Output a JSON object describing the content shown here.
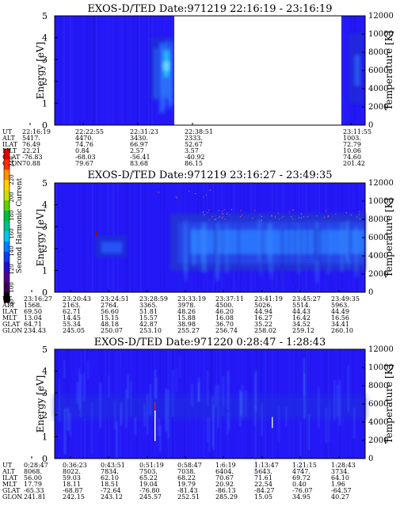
{
  "panels": [
    {
      "title": "EXOS-D/TED   Date:971219  22:16:19 - 23:16:19",
      "ylabel": "Energy [eV]",
      "y2label": "Temperature [K]",
      "yticks": [
        "0",
        "1",
        "2",
        "3",
        "4",
        "5"
      ],
      "y2ticks": [
        "0",
        "2000",
        "4000",
        "6000",
        "8000",
        "10000",
        "12000"
      ],
      "eph_labels": [
        "UT",
        "ALT",
        "ILAT",
        "MLT",
        "GLAT",
        "GLON"
      ],
      "eph_columns": [
        [
          "22:16:19",
          "5417.",
          "76.49",
          "22.21",
          "-76.83",
          "70.88"
        ],
        [
          "22:22:55",
          "4470.",
          "74.76",
          "0.84",
          "-68.03",
          "79.67"
        ],
        [
          "22:31:23",
          "3430.",
          "66.97",
          "2.57",
          "-56.41",
          "83.68"
        ],
        [
          "22:38:51",
          "2333.",
          "52.67",
          "3.57",
          "-40.92",
          "86.15"
        ],
        [
          "23:11:55",
          "1003.",
          "72.79",
          "10.06",
          "74.60",
          "201.42"
        ]
      ]
    },
    {
      "title": "EXOS-D/TED   Date:971219  23:16:27 - 23:49:35",
      "ylabel": "Energy [eV]",
      "y2label": "Temperature [K]",
      "yticks": [
        "0",
        "1",
        "2",
        "3",
        "4",
        "5"
      ],
      "y2ticks": [
        "0",
        "2000",
        "4000",
        "6000",
        "8000",
        "10000",
        "12000"
      ],
      "eph_labels": [
        "UT",
        "ALT",
        "ILAT",
        "MLT",
        "GLAT",
        "GLON"
      ],
      "eph_columns": [
        [
          "23:16:27",
          "1568.",
          "69.50",
          "13.04",
          "64.71",
          "234.43"
        ],
        [
          "23:20:43",
          "2163.",
          "62.71",
          "14.45",
          "55.34",
          "245.05"
        ],
        [
          "23:24:51",
          "2764.",
          "56.60",
          "15.15",
          "48.18",
          "250.07"
        ],
        [
          "23:28:59",
          "3365.",
          "51.81",
          "15.57",
          "42.87",
          "253.10"
        ],
        [
          "23:33:19",
          "3978.",
          "48.26",
          "15.88",
          "38.98",
          "255.27"
        ],
        [
          "23:37:11",
          "4500.",
          "46.20",
          "16.08",
          "36.70",
          "256.74"
        ],
        [
          "23:41:19",
          "5026.",
          "44.94",
          "16.27",
          "35.22",
          "258.02"
        ],
        [
          "23:45:27",
          "5514.",
          "44.43",
          "16.42",
          "34.52",
          "259.12"
        ],
        [
          "23:49:35",
          "5963.",
          "44.49",
          "16.56",
          "34.41",
          "260.10"
        ]
      ]
    },
    {
      "title": "EXOS-D/TED   Date:971220  0:28:47 - 1:28:43",
      "ylabel": "Energy [eV]",
      "y2label": "Temperature [K]",
      "yticks": [
        "0",
        "1",
        "2",
        "3",
        "4",
        "5"
      ],
      "y2ticks": [
        "0",
        "2000",
        "4000",
        "6000",
        "8000",
        "10000",
        "12000"
      ],
      "eph_labels": [
        "UT",
        "ALT",
        "ILAT",
        "MLT",
        "GLAT",
        "GLON"
      ],
      "eph_columns": [
        [
          "0:28:47",
          "8068.",
          "56.00",
          "17.79",
          "-65.33",
          "241.81"
        ],
        [
          "0:36:23",
          "8022.",
          "59.03",
          "18.11",
          "-68.87",
          "242.15"
        ],
        [
          "0:43:51",
          "7834.",
          "62.10",
          "18.51",
          "-72.64",
          "243.12"
        ],
        [
          "0:51:19",
          "7503.",
          "65.22",
          "19.04",
          "-76.80",
          "245.57"
        ],
        [
          "0:58:47",
          "7038.",
          "68.22",
          "19.79",
          "-81.43",
          "252.51"
        ],
        [
          "1:6:19",
          "6404.",
          "70.67",
          "20.92",
          "-86.13",
          "285.29"
        ],
        [
          "1:13:47",
          "5643.",
          "71.61",
          "22.54",
          "-84.27",
          "15.05"
        ],
        [
          "1:21:15",
          "4747.",
          "69.72",
          "0.40",
          "-76.07",
          "34.95"
        ],
        [
          "1:28:43",
          "3734.",
          "64.10",
          "1.96",
          "-64.57",
          "40.27"
        ]
      ]
    }
  ],
  "colorbar": {
    "label": "Second Harmonic Current",
    "ticks": [
      "0",
      "80",
      "100",
      "120",
      "140",
      "160",
      "180",
      "200",
      "220",
      "240"
    ]
  },
  "chart_data": [
    {
      "type": "heatmap",
      "title": "EXOS-D/TED   Date:971219  22:16:19 - 23:16:19",
      "xlabel": "",
      "ylabel": "Energy [eV]",
      "y2label": "Temperature [K]",
      "x_range": [
        "22:16:19",
        "23:16:19"
      ],
      "ylim": [
        0,
        5
      ],
      "y2lim": [
        0,
        12000
      ],
      "data_gap": [
        "22:41",
        "23:11"
      ],
      "features": [
        {
          "time": "22:36-22:39",
          "energy_range": [
            1.5,
            4.0
          ],
          "level": 170
        }
      ]
    },
    {
      "type": "heatmap",
      "title": "EXOS-D/TED   Date:971219  23:16:27 - 23:49:35",
      "xlabel": "",
      "ylabel": "Energy [eV]",
      "y2label": "Temperature [K]",
      "x_range": [
        "23:16:27",
        "23:49:35"
      ],
      "ylim": [
        0,
        5
      ],
      "y2lim": [
        0,
        12000
      ],
      "features": [
        {
          "time": "23:21-23:25",
          "energy_range": [
            1.6,
            2.6
          ],
          "level": 145
        },
        {
          "time": "23:28-23:49",
          "energy_range": [
            1.0,
            3.6
          ],
          "level": 150
        },
        {
          "time": "23:30-23:49",
          "energy_range": [
            1.8,
            2.8
          ],
          "level": 175
        }
      ]
    },
    {
      "type": "heatmap",
      "title": "EXOS-D/TED   Date:971220  0:28:47 - 1:28:43",
      "xlabel": "",
      "ylabel": "Energy [eV]",
      "y2label": "Temperature [K]",
      "x_range": [
        "0:28:47",
        "1:28:43"
      ],
      "ylim": [
        0,
        5
      ],
      "y2lim": [
        0,
        12000
      ],
      "features": [
        {
          "time": "0:28:47-1:28:43",
          "energy_range": [
            1.8,
            2.8
          ],
          "level": 135
        },
        {
          "time": "0:52:30",
          "energy_range": [
            0.8,
            2.2
          ],
          "level": 240
        }
      ]
    }
  ],
  "colors": {
    "background": "#2418f6",
    "mid": "#1c2bd8",
    "bright": "#2e7bff",
    "cyan": "#20c6f0",
    "white": "#ffffff",
    "red": "#cc2030"
  }
}
